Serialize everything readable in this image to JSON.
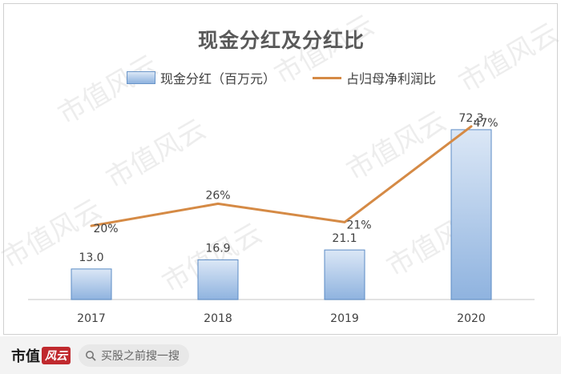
{
  "chart_data": {
    "type": "bar",
    "title": "现金分红及分红比",
    "categories": [
      "2017",
      "2018",
      "2019",
      "2020"
    ],
    "series": [
      {
        "name": "现金分红（百万元）",
        "type": "bar",
        "values": [
          13.0,
          16.9,
          21.1,
          72.3
        ],
        "labels": [
          "13.0",
          "16.9",
          "21.1",
          "72.3"
        ],
        "color": "#8fb3df"
      },
      {
        "name": "占归母净利润比",
        "type": "line",
        "values": [
          20,
          26,
          21,
          47
        ],
        "labels": [
          "20%",
          "26%",
          "21%",
          "47%"
        ],
        "color": "#d58a45"
      }
    ],
    "legend": "top",
    "grid": false
  },
  "watermark": "市值风云",
  "footer": {
    "brand_text": "市值",
    "brand_mark": "风云",
    "search_text": "买股之前搜一搜"
  }
}
